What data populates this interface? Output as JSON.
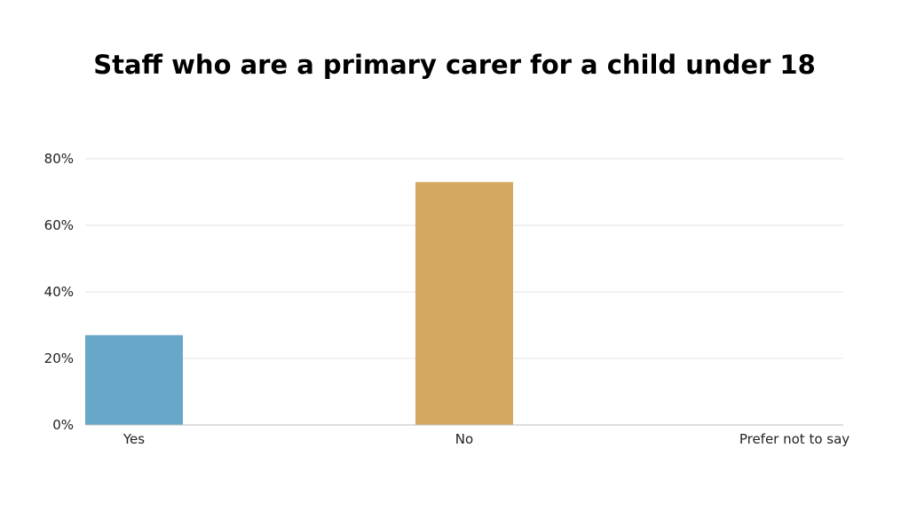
{
  "chart_data": {
    "type": "bar",
    "title": "Staff who are a primary carer for a child under 18",
    "categories": [
      "Yes",
      "No",
      "Prefer not to say"
    ],
    "series": [
      {
        "values": [
          27,
          73,
          0
        ]
      }
    ],
    "bar_colors": [
      "#67a7c7",
      "#d4a762",
      "#d4a762"
    ],
    "xlabel": "",
    "ylabel": "",
    "ylim": [
      0,
      80
    ],
    "yticks": [
      0,
      20,
      40,
      60,
      80
    ],
    "ytick_labels": [
      "0%",
      "20%",
      "40%",
      "60%",
      "80%"
    ],
    "grid": true,
    "legend": "none"
  }
}
